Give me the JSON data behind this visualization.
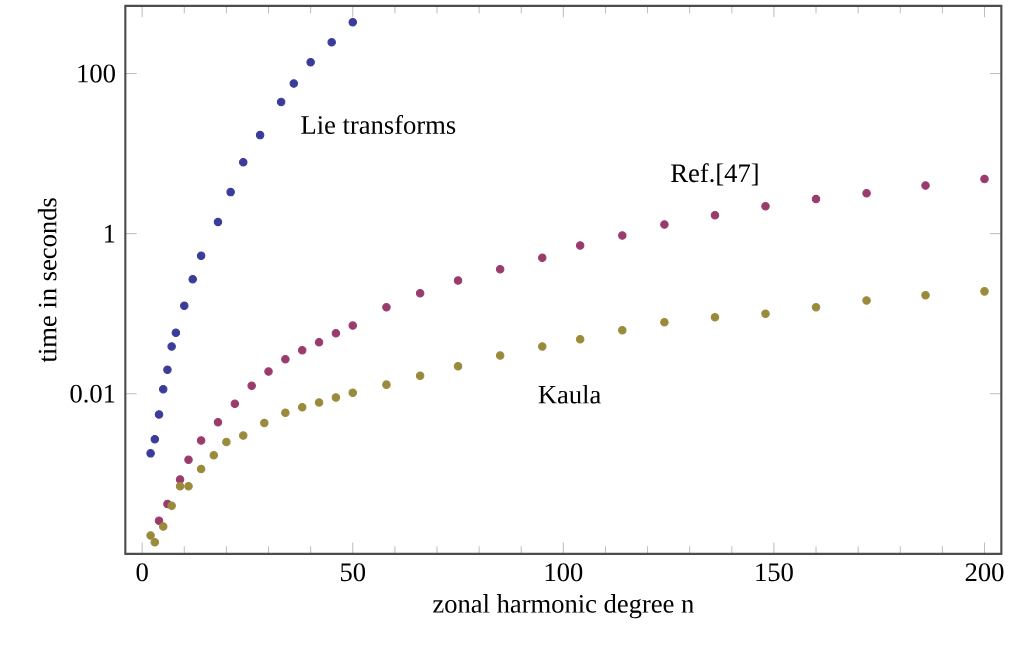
{
  "chart_data": {
    "type": "scatter",
    "xlabel": "zonal harmonic degree n",
    "ylabel": "time in seconds",
    "log": "y",
    "marker": "circle",
    "grid": false,
    "xlim": [
      -4,
      204
    ],
    "ylim": [
      0.0001,
      700
    ],
    "xticks": [
      0,
      50,
      100,
      150,
      200
    ],
    "yticks": [
      0.01,
      1,
      100
    ],
    "series": [
      {
        "name": "Lie transforms",
        "color": "#3b3b9a",
        "x": [
          2,
          3,
          4,
          5,
          6,
          7,
          8,
          10,
          12,
          14,
          18,
          21,
          24,
          28,
          33,
          36,
          40,
          45,
          50
        ],
        "values": [
          0.0018,
          0.0027,
          0.0055,
          0.0114,
          0.02,
          0.039,
          0.058,
          0.126,
          0.27,
          0.53,
          1.4,
          3.3,
          7.8,
          17,
          44,
          75,
          138,
          245,
          436
        ]
      },
      {
        "name": "Ref.[47]",
        "color": "#9a3b6e",
        "x": [
          4,
          6,
          9,
          11,
          14,
          18,
          22,
          26,
          30,
          34,
          38,
          42,
          46,
          50,
          58,
          66,
          75,
          85,
          95,
          104,
          114,
          124,
          136,
          148,
          160,
          172,
          186,
          200
        ],
        "values": [
          0.00026,
          0.00042,
          0.00085,
          0.0015,
          0.0026,
          0.0044,
          0.0075,
          0.0126,
          0.019,
          0.027,
          0.035,
          0.044,
          0.057,
          0.071,
          0.12,
          0.18,
          0.26,
          0.36,
          0.5,
          0.71,
          0.95,
          1.3,
          1.7,
          2.2,
          2.7,
          3.2,
          4,
          4.8
        ]
      },
      {
        "name": "Kaula",
        "color": "#9a8a3b",
        "x": [
          2,
          3,
          5,
          7,
          9,
          11,
          14,
          17,
          20,
          24,
          29,
          34,
          38,
          42,
          46,
          50,
          58,
          66,
          75,
          85,
          95,
          104,
          114,
          124,
          136,
          148,
          160,
          172,
          186,
          200
        ],
        "values": [
          0.00017,
          0.00014,
          0.00022,
          0.0004,
          0.0007,
          0.0007,
          0.00115,
          0.0017,
          0.0025,
          0.003,
          0.0043,
          0.0058,
          0.0068,
          0.0078,
          0.009,
          0.0103,
          0.013,
          0.0168,
          0.022,
          0.03,
          0.039,
          0.048,
          0.062,
          0.078,
          0.09,
          0.1,
          0.12,
          0.146,
          0.17,
          0.19
        ]
      }
    ]
  }
}
